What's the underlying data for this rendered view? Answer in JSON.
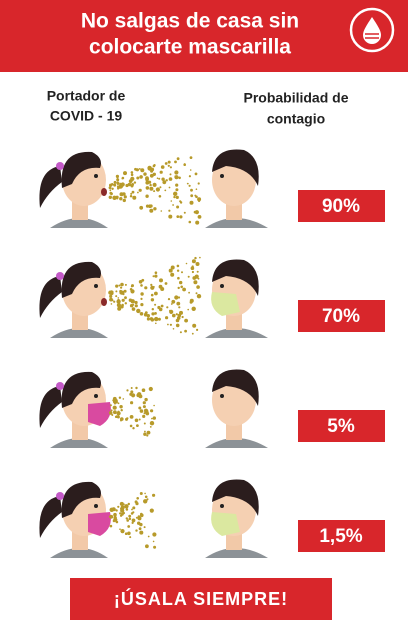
{
  "header": {
    "title": [
      "No salgas de casa sin",
      "colocarte mascarilla"
    ]
  },
  "columns": [
    [
      "Portador  de",
      "COVID - 19"
    ],
    [
      "Probabilidad de",
      "contagio"
    ]
  ],
  "rows": [
    {
      "label": "90%"
    },
    {
      "label": "70%"
    },
    {
      "label": "5%"
    },
    {
      "label": "1,5%"
    }
  ],
  "footer": {
    "button": "¡ÚSALA  SIEMPRE!"
  }
}
